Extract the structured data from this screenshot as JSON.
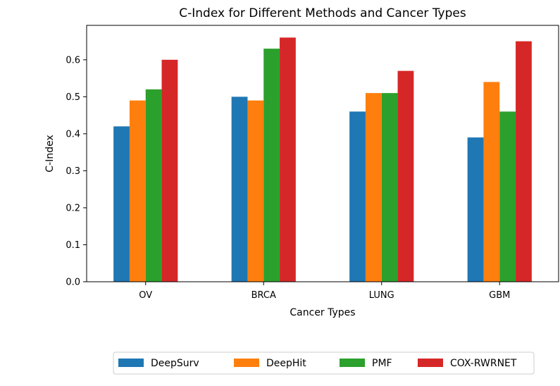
{
  "chart_data": {
    "type": "bar",
    "title": "C-Index for Different Methods and Cancer Types",
    "xlabel": "Cancer Types",
    "ylabel": "C-Index",
    "categories": [
      "OV",
      "BRCA",
      "LUNG",
      "GBM"
    ],
    "series": [
      {
        "name": "DeepSurv",
        "color": "#1f77b4",
        "values": [
          0.42,
          0.5,
          0.46,
          0.39
        ]
      },
      {
        "name": "DeepHit",
        "color": "#ff7f0e",
        "values": [
          0.49,
          0.49,
          0.51,
          0.54
        ]
      },
      {
        "name": "PMF",
        "color": "#2ca02c",
        "values": [
          0.52,
          0.63,
          0.51,
          0.46
        ]
      },
      {
        "name": "COX-RWRNET",
        "color": "#d62728",
        "values": [
          0.6,
          0.66,
          0.57,
          0.65
        ]
      }
    ],
    "yticks": [
      "0.0",
      "0.1",
      "0.2",
      "0.3",
      "0.4",
      "0.5",
      "0.6"
    ],
    "ylim": [
      0,
      0.693
    ],
    "grid": false,
    "legend_position": "bottom-center"
  }
}
